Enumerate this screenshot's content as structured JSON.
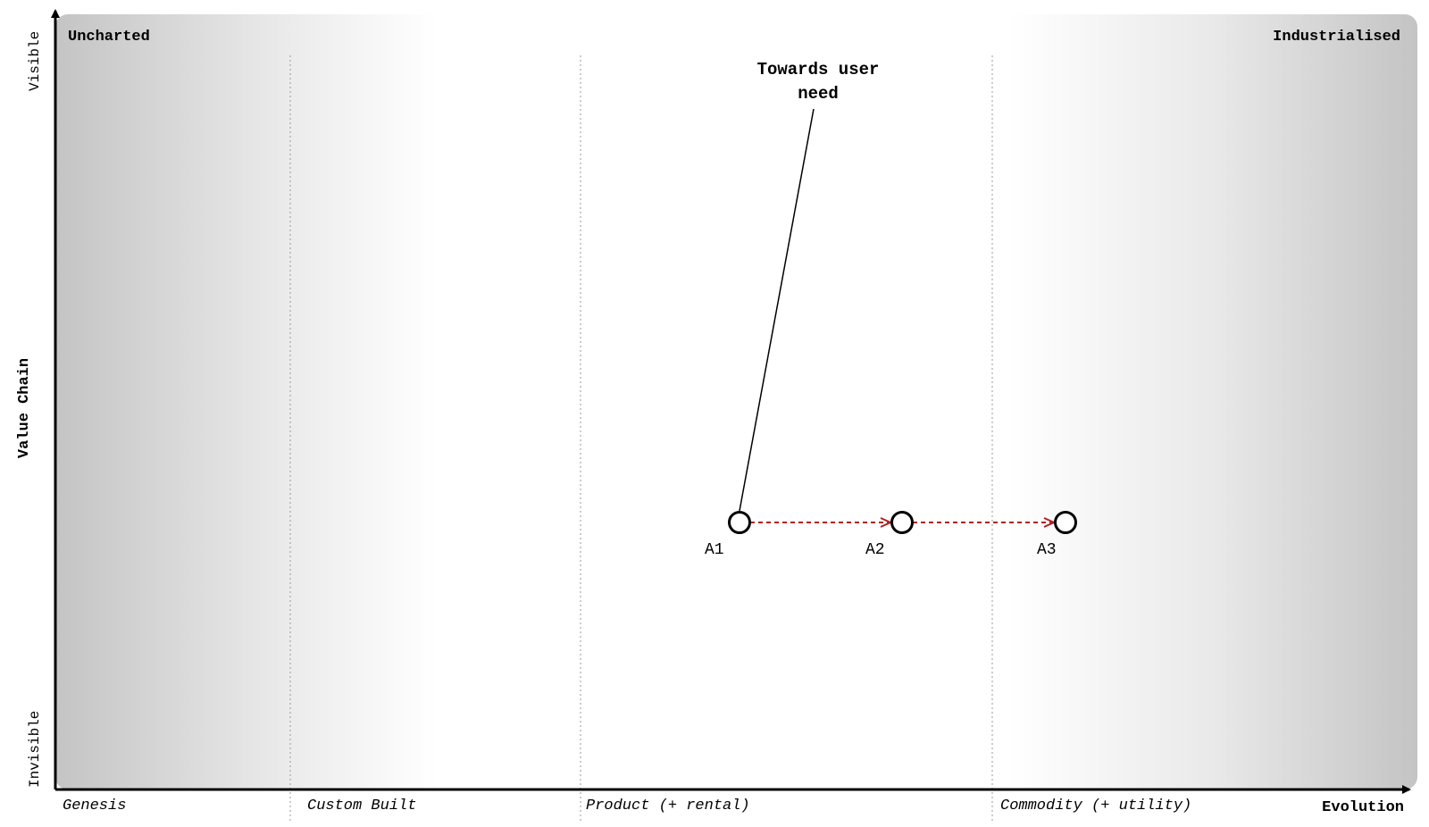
{
  "corner_labels": {
    "top_left": "Uncharted",
    "top_right": "Industrialised"
  },
  "y_axis": {
    "title": "Value Chain",
    "top": "Visible",
    "bottom": "Invisible"
  },
  "x_axis": {
    "title": "Evolution",
    "stages": [
      "Genesis",
      "Custom Built",
      "Product (+ rental)",
      "Commodity (+ utility)"
    ]
  },
  "annotation": {
    "line1": "Towards user",
    "line2": "need"
  },
  "components": [
    {
      "id": "a1",
      "label": "A1"
    },
    {
      "id": "a2",
      "label": "A2"
    },
    {
      "id": "a3",
      "label": "A3"
    }
  ],
  "colors": {
    "evolution_arrow": "#b22222",
    "node_stroke": "#000000",
    "node_fill": "#ffffff",
    "gradient_dark": "#c4c4c4",
    "gradient_light": "#ffffff",
    "stage_divider": "#9a9a9a"
  }
}
